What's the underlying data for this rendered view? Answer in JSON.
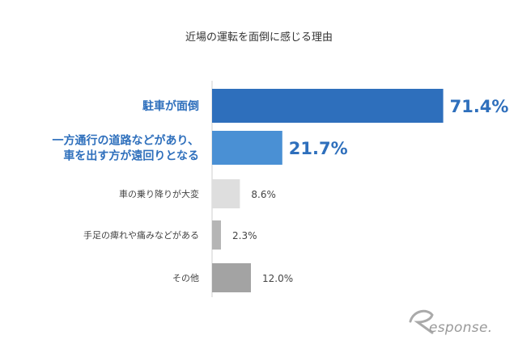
{
  "chart_data": {
    "type": "bar",
    "orientation": "horizontal",
    "title": "近場の運転を面倒に感じる理由",
    "categories": [
      [
        "駐車が面倒"
      ],
      [
        "一方通行の道路などがあり、",
        "車を出す方が遠回りとなる"
      ],
      [
        "車の乗り降りが大変"
      ],
      [
        "手足の痺れや痛みなどがある"
      ],
      [
        "その他"
      ]
    ],
    "values": [
      71.4,
      21.7,
      8.6,
      2.3,
      12.0
    ],
    "value_labels": [
      "71.4%",
      "21.7%",
      "8.6%",
      "2.3%",
      "12.0%"
    ],
    "highlighted": [
      true,
      true,
      false,
      false,
      false
    ],
    "colors": [
      "#2e6fbc",
      "#4a90d4",
      "#dedede",
      "#b5b5b5",
      "#a3a3a3"
    ],
    "xlim": [
      0,
      100
    ],
    "grid": false,
    "legend": "none"
  },
  "brand": {
    "logo_text": "Response."
  }
}
